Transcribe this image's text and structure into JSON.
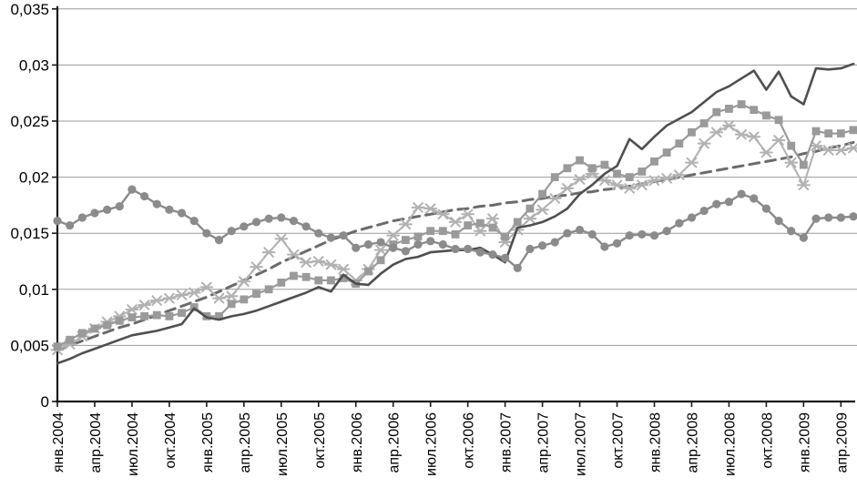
{
  "chart_data": {
    "type": "line",
    "title": "",
    "legend": "none",
    "grid": true,
    "background": "#ffffff",
    "x_axis": {
      "unit": "month",
      "first_point": "янв.2004",
      "last_labeled_tick": "апр.2009",
      "points_total": 65,
      "tick_every_months": 3,
      "tick_labels": [
        "янв.2004",
        "апр.2004",
        "июл.2004",
        "окт.2004",
        "янв.2005",
        "апр.2005",
        "июл.2005",
        "окт.2005",
        "янв.2006",
        "апр.2006",
        "июл.2006",
        "окт.2006",
        "янв.2007",
        "апр.2007",
        "июл.2007",
        "окт.2007",
        "янв.2008",
        "апр.2008",
        "июл.2008",
        "окт.2008",
        "янв.2009",
        "апр.2009"
      ]
    },
    "y_axis": {
      "min": 0,
      "max": 0.035,
      "step": 0.005,
      "decimal_separator": ",",
      "tick_labels": [
        "0",
        "0,005",
        "0,01",
        "0,015",
        "0,02",
        "0,025",
        "0,03",
        "0,035"
      ]
    },
    "series": [
      {
        "name": "dashed-trend",
        "marker": "none",
        "line": "dashed",
        "color": "#6b6b6b",
        "width": 3,
        "values": [
          0.0046,
          0.005,
          0.0054,
          0.0058,
          0.0062,
          0.0066,
          0.0069,
          0.0073,
          0.0077,
          0.0081,
          0.0085,
          0.0089,
          0.0093,
          0.0098,
          0.0103,
          0.0108,
          0.0113,
          0.0118,
          0.0124,
          0.0129,
          0.0134,
          0.0139,
          0.0144,
          0.0148,
          0.0152,
          0.0155,
          0.0158,
          0.0161,
          0.0163,
          0.0165,
          0.0167,
          0.0169,
          0.0171,
          0.0172,
          0.0174,
          0.0175,
          0.0177,
          0.0178,
          0.018,
          0.0181,
          0.0183,
          0.0184,
          0.0186,
          0.0187,
          0.0189,
          0.019,
          0.0192,
          0.0194,
          0.0196,
          0.0198,
          0.02,
          0.0202,
          0.0204,
          0.0206,
          0.0208,
          0.021,
          0.0212,
          0.0214,
          0.0216,
          0.0218,
          0.0221,
          0.0223,
          0.0226,
          0.0228,
          0.0231
        ]
      },
      {
        "name": "star-markers",
        "marker": "star",
        "line": "solid",
        "color": "#b2b2b2",
        "width": 2,
        "values": [
          0.0046,
          0.0051,
          0.0058,
          0.0065,
          0.0071,
          0.0076,
          0.0082,
          0.0086,
          0.009,
          0.0092,
          0.0095,
          0.0097,
          0.0102,
          0.0092,
          0.0094,
          0.0107,
          0.012,
          0.0133,
          0.0145,
          0.0131,
          0.0124,
          0.0125,
          0.0122,
          0.0118,
          0.0108,
          0.0118,
          0.0135,
          0.0148,
          0.0158,
          0.0173,
          0.0172,
          0.0167,
          0.016,
          0.0167,
          0.0152,
          0.0163,
          0.0142,
          0.0153,
          0.0163,
          0.0171,
          0.0181,
          0.019,
          0.0198,
          0.0203,
          0.0197,
          0.0193,
          0.019,
          0.0193,
          0.0197,
          0.0199,
          0.0202,
          0.0213,
          0.023,
          0.024,
          0.0246,
          0.0238,
          0.0236,
          0.0222,
          0.0233,
          0.0213,
          0.0193,
          0.0228,
          0.0224,
          0.0224,
          0.0226
        ]
      },
      {
        "name": "square-markers",
        "marker": "square",
        "line": "solid",
        "color": "#9a9a9a",
        "width": 2.2,
        "values": [
          0.0049,
          0.0055,
          0.0061,
          0.0065,
          0.0068,
          0.0072,
          0.0075,
          0.0076,
          0.0077,
          0.0076,
          0.0079,
          0.0084,
          0.0076,
          0.0076,
          0.0087,
          0.0091,
          0.0096,
          0.01,
          0.0106,
          0.0112,
          0.0111,
          0.0108,
          0.0108,
          0.011,
          0.0105,
          0.0116,
          0.0126,
          0.014,
          0.0144,
          0.0147,
          0.0152,
          0.0152,
          0.0149,
          0.0157,
          0.0159,
          0.0155,
          0.0147,
          0.016,
          0.0172,
          0.0185,
          0.02,
          0.0208,
          0.0215,
          0.0208,
          0.0211,
          0.0203,
          0.02,
          0.0205,
          0.0214,
          0.0222,
          0.023,
          0.024,
          0.0248,
          0.0258,
          0.0261,
          0.0265,
          0.026,
          0.0255,
          0.0251,
          0.0228,
          0.0211,
          0.0241,
          0.0239,
          0.0239,
          0.0242
        ]
      },
      {
        "name": "dark-solid",
        "marker": "none",
        "line": "solid",
        "color": "#4f4f4f",
        "width": 2.6,
        "values": [
          0.0034,
          0.0038,
          0.0043,
          0.0047,
          0.0051,
          0.0055,
          0.0059,
          0.0061,
          0.0063,
          0.0066,
          0.0069,
          0.0083,
          0.0075,
          0.0073,
          0.0076,
          0.0078,
          0.0081,
          0.0085,
          0.0089,
          0.0093,
          0.0097,
          0.0102,
          0.0098,
          0.0113,
          0.0105,
          0.0104,
          0.0114,
          0.0122,
          0.0127,
          0.0129,
          0.0133,
          0.0134,
          0.0135,
          0.0135,
          0.0137,
          0.0131,
          0.0124,
          0.0155,
          0.0157,
          0.016,
          0.0165,
          0.0172,
          0.0185,
          0.0193,
          0.0203,
          0.021,
          0.0234,
          0.0225,
          0.0236,
          0.0246,
          0.0252,
          0.0258,
          0.0267,
          0.0276,
          0.0281,
          0.0288,
          0.0295,
          0.0278,
          0.0294,
          0.0272,
          0.0265,
          0.0297,
          0.0296,
          0.0297,
          0.0301
        ]
      },
      {
        "name": "circle-markers",
        "marker": "circle",
        "line": "solid",
        "color": "#8b8b8b",
        "width": 2.4,
        "values": [
          0.0161,
          0.0157,
          0.0164,
          0.0168,
          0.0171,
          0.0174,
          0.0189,
          0.0183,
          0.0176,
          0.0171,
          0.0168,
          0.0161,
          0.015,
          0.0144,
          0.0152,
          0.0156,
          0.016,
          0.0163,
          0.0164,
          0.0161,
          0.0156,
          0.015,
          0.0146,
          0.0148,
          0.0137,
          0.014,
          0.0142,
          0.0137,
          0.0134,
          0.014,
          0.0143,
          0.014,
          0.0136,
          0.0136,
          0.0133,
          0.0131,
          0.0128,
          0.0119,
          0.0136,
          0.0139,
          0.0142,
          0.015,
          0.0153,
          0.0149,
          0.0138,
          0.0141,
          0.0148,
          0.0149,
          0.0148,
          0.0152,
          0.0159,
          0.0164,
          0.017,
          0.0176,
          0.0178,
          0.0185,
          0.0181,
          0.0172,
          0.0161,
          0.0152,
          0.0146,
          0.0163,
          0.0164,
          0.0164,
          0.0165
        ]
      }
    ]
  },
  "colors": {
    "axis": "#1a1a1a",
    "grid": "#9c9c9c",
    "text": "#000000",
    "background": "#ffffff"
  },
  "layout_note": "no title, no legend, plot fills frame"
}
